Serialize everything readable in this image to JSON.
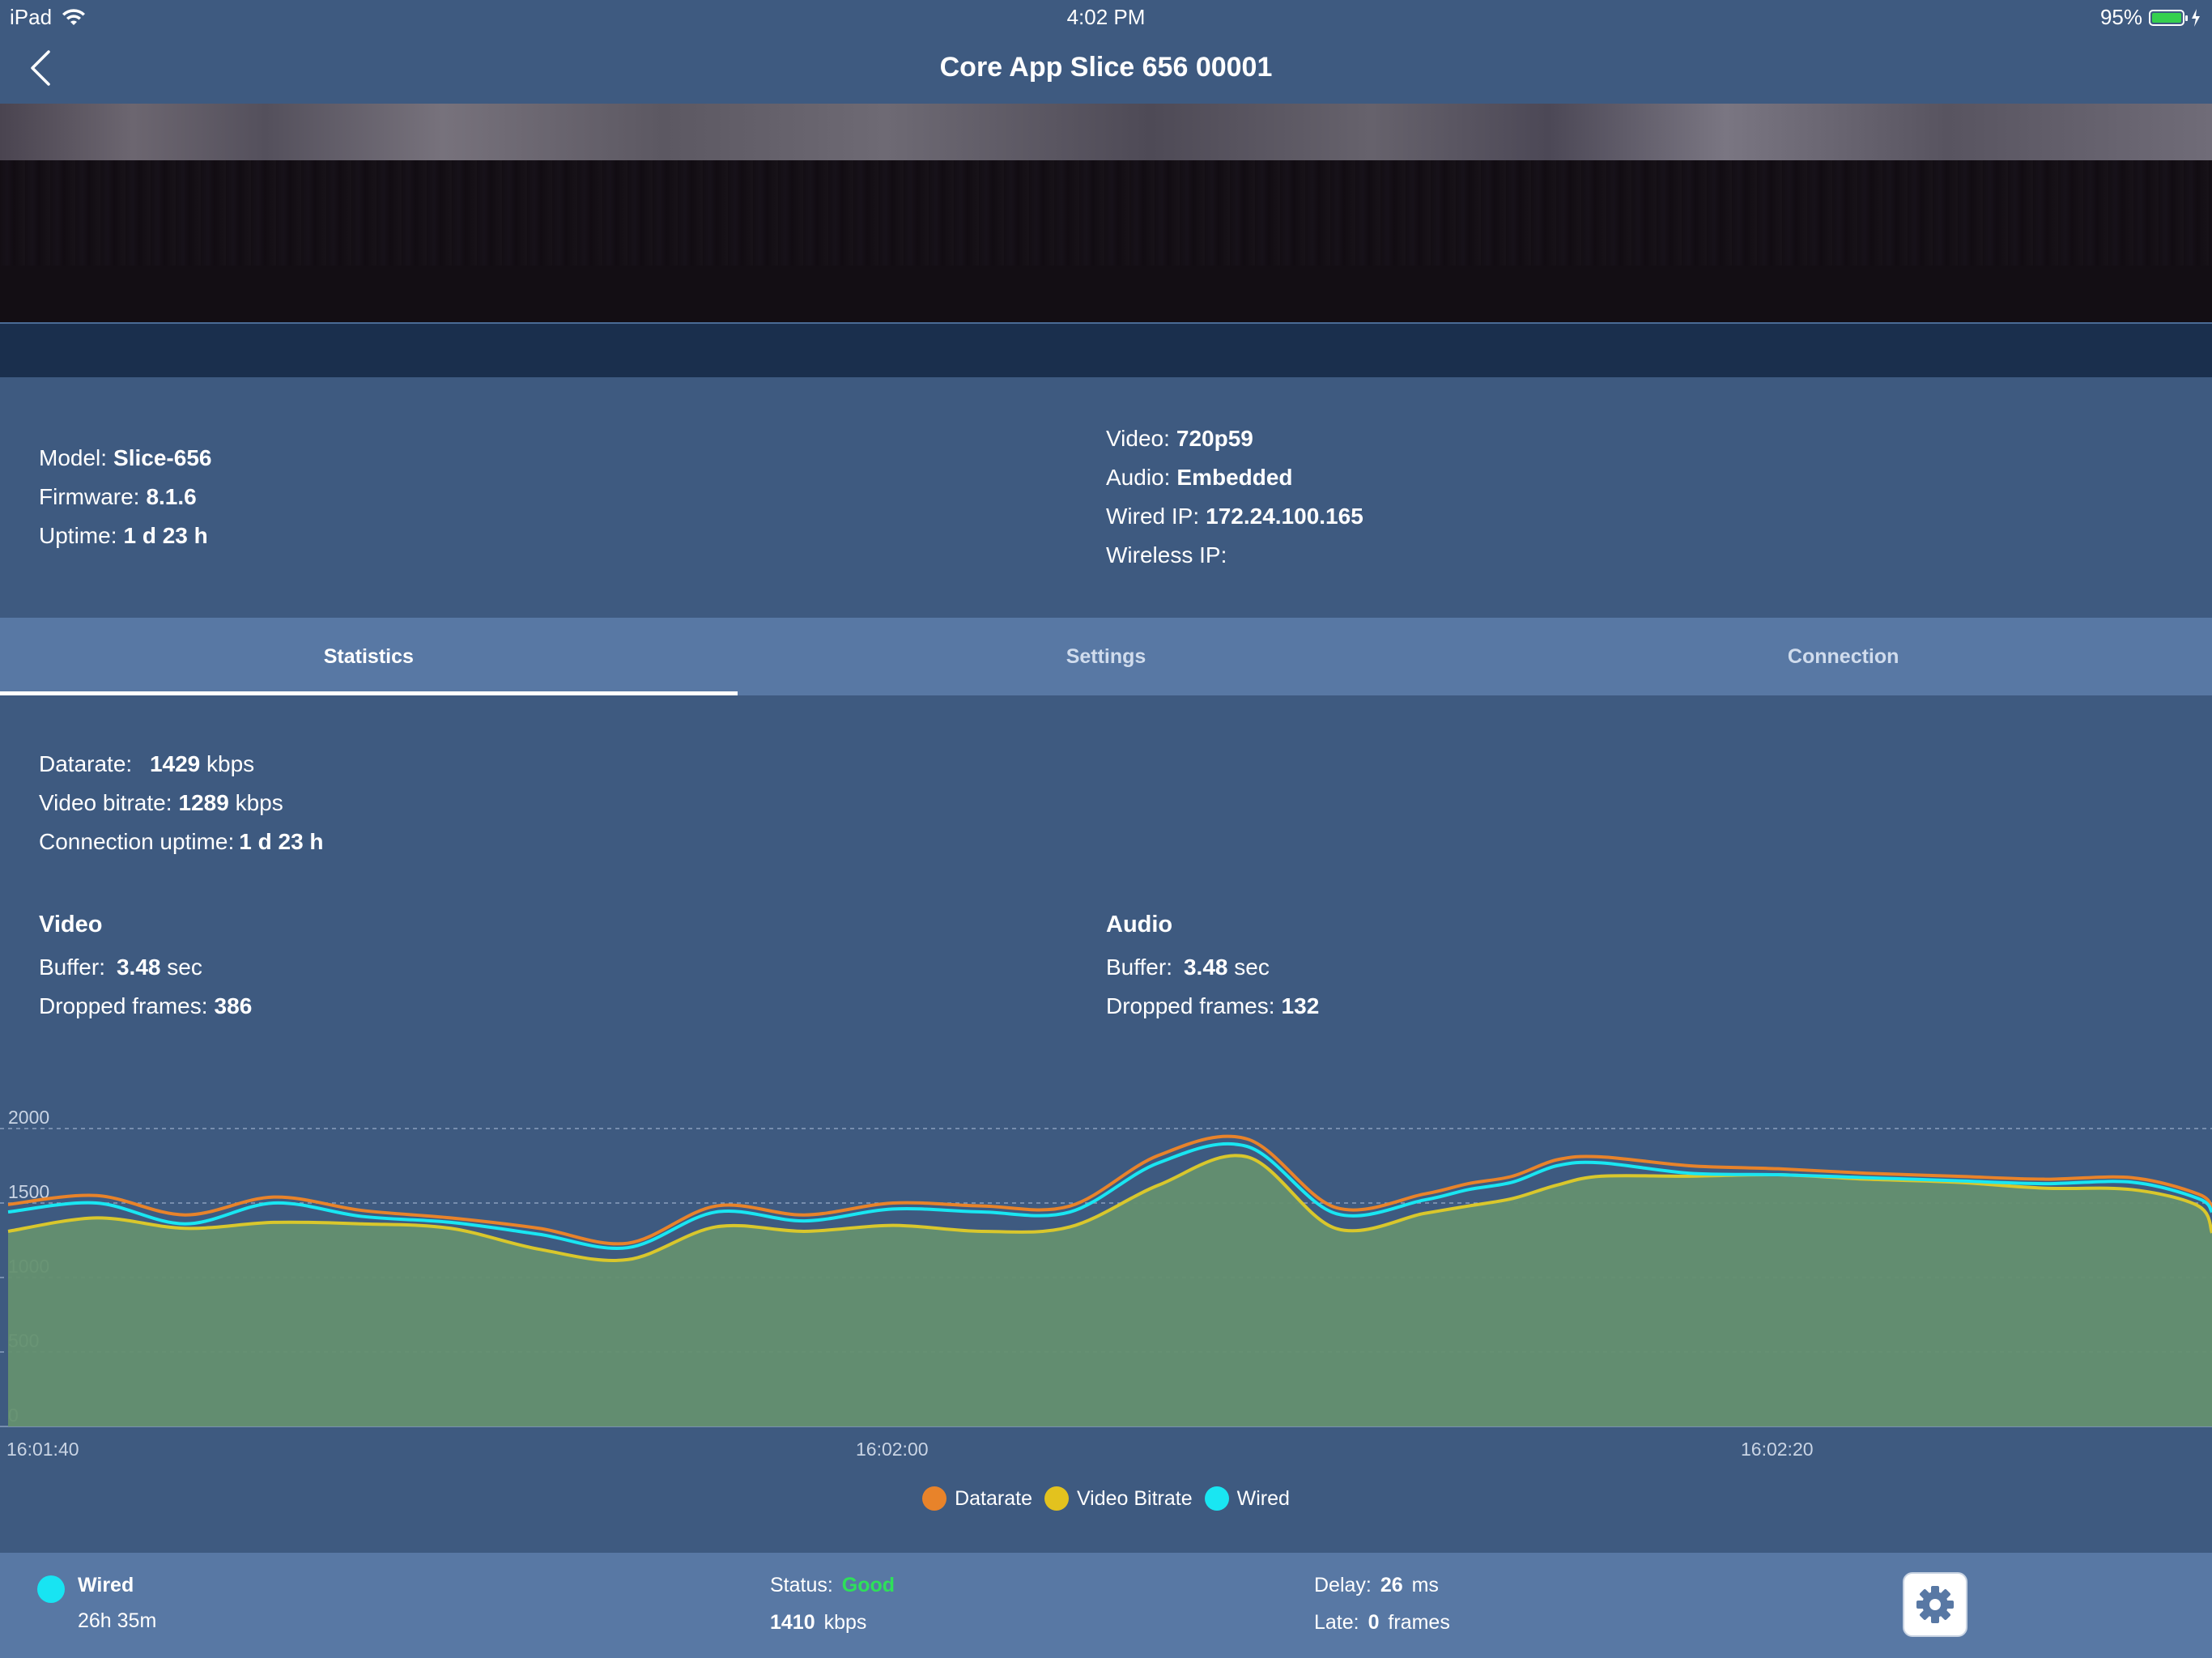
{
  "status_bar": {
    "device": "iPad",
    "time": "4:02 PM",
    "battery": "95%"
  },
  "nav": {
    "title": "Core App Slice 656 00001"
  },
  "device_info": {
    "left": [
      {
        "label": "Model:",
        "value": "Slice-656"
      },
      {
        "label": "Firmware:",
        "value": "8.1.6"
      },
      {
        "label": "Uptime:",
        "value": "1 d 23 h"
      }
    ],
    "right": [
      {
        "label": "Video:",
        "value": "720p59"
      },
      {
        "label": "Audio:",
        "value": "Embedded"
      },
      {
        "label": "Wired IP:",
        "value": "172.24.100.165"
      },
      {
        "label": "Wireless IP:",
        "value": ""
      }
    ]
  },
  "tabs": [
    {
      "label": "Statistics",
      "active": true
    },
    {
      "label": "Settings",
      "active": false
    },
    {
      "label": "Connection",
      "active": false
    }
  ],
  "stats": {
    "datarate": {
      "label": "Datarate:",
      "value": "1429",
      "unit": "kbps"
    },
    "video_bitrate": {
      "label": "Video bitrate:",
      "value": "1289",
      "unit": "kbps"
    },
    "connection_uptime": {
      "label": "Connection uptime:",
      "value": "1 d 23 h"
    }
  },
  "video": {
    "title": "Video",
    "buffer": {
      "label": "Buffer:",
      "value": "3.48",
      "unit": "sec"
    },
    "dropped": {
      "label": "Dropped frames:",
      "value": "386"
    }
  },
  "audio": {
    "title": "Audio",
    "buffer": {
      "label": "Buffer:",
      "value": "3.48",
      "unit": "sec"
    },
    "dropped": {
      "label": "Dropped frames:",
      "value": "132"
    }
  },
  "chart_data": {
    "type": "area",
    "title": "",
    "xlabel": "",
    "ylabel": "",
    "ylim": [
      0,
      2000
    ],
    "y_ticks": [
      0,
      500,
      1000,
      1500,
      2000
    ],
    "x_ticks": [
      {
        "label": "16:01:40",
        "t": 0
      },
      {
        "label": "16:02:00",
        "t": 20
      },
      {
        "label": "16:02:20",
        "t": 40
      }
    ],
    "xlim": [
      0,
      50
    ],
    "grid": true,
    "legend_position": "bottom-center",
    "x": [
      0,
      2,
      4,
      6,
      8,
      10,
      12,
      14,
      16,
      18,
      20,
      22,
      24,
      26,
      28,
      30,
      32,
      33,
      34,
      35,
      36,
      38,
      40,
      42,
      44,
      46,
      48,
      49.5,
      50
    ],
    "series": [
      {
        "name": "Datarate",
        "color": "#e8832a",
        "values": [
          1490,
          1550,
          1420,
          1540,
          1450,
          1400,
          1330,
          1230,
          1480,
          1420,
          1500,
          1480,
          1480,
          1820,
          1930,
          1470,
          1560,
          1630,
          1680,
          1790,
          1810,
          1750,
          1730,
          1700,
          1680,
          1660,
          1670,
          1560,
          1470
        ]
      },
      {
        "name": "Video Bitrate",
        "color": "#d9c72c",
        "values": [
          1310,
          1400,
          1330,
          1370,
          1360,
          1330,
          1190,
          1120,
          1340,
          1310,
          1350,
          1310,
          1340,
          1620,
          1810,
          1330,
          1430,
          1480,
          1530,
          1620,
          1680,
          1680,
          1690,
          1660,
          1640,
          1600,
          1590,
          1480,
          1300
        ]
      },
      {
        "name": "Wired",
        "color": "#19e6f2",
        "values": [
          1440,
          1500,
          1360,
          1500,
          1410,
          1370,
          1290,
          1200,
          1440,
          1380,
          1460,
          1440,
          1440,
          1770,
          1880,
          1430,
          1520,
          1590,
          1640,
          1750,
          1770,
          1700,
          1690,
          1670,
          1650,
          1630,
          1640,
          1530,
          1440
        ]
      }
    ]
  },
  "footer": {
    "connection": {
      "name": "Wired",
      "duration": "26h 35m"
    },
    "status": {
      "label": "Status:",
      "value": "Good",
      "value_color": "#2ee05a"
    },
    "bitrate": {
      "value": "1410",
      "unit": "kbps"
    },
    "delay": {
      "label": "Delay:",
      "value": "26",
      "unit": "ms"
    },
    "late": {
      "label": "Late:",
      "value": "0",
      "unit": "frames"
    }
  }
}
